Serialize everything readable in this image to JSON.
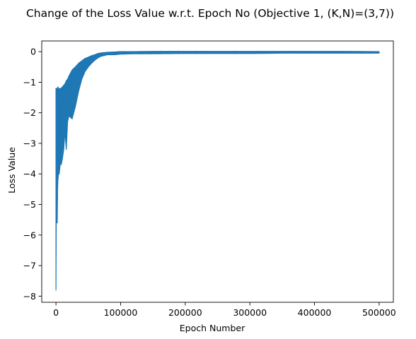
{
  "chart_data": {
    "type": "line",
    "title": "Change of the Loss Value w.r.t. Epoch No (Objective 1, (K,N)=(3,7))",
    "xlabel": "Epoch Number",
    "ylabel": "Loss Value",
    "xlim": [
      -22000,
      522000
    ],
    "ylim": [
      -8.2,
      0.35
    ],
    "x_ticks": [
      0,
      100000,
      200000,
      300000,
      400000,
      500000
    ],
    "y_ticks": [
      0,
      -1,
      -2,
      -3,
      -4,
      -5,
      -6,
      -7,
      -8
    ],
    "grid": false,
    "legend": "none",
    "series_color": "#1f77b4",
    "series": [
      {
        "x": [
          0,
          500,
          1000,
          1500,
          2000,
          2500,
          3000,
          4000,
          5000,
          6000,
          7000,
          8000,
          10000,
          12000,
          14000,
          16000,
          18000,
          20000,
          25000,
          30000,
          35000,
          40000,
          45000,
          50000,
          55000,
          60000,
          65000,
          70000,
          80000,
          90000,
          100000,
          120000,
          150000,
          200000,
          250000,
          300000,
          350000,
          400000,
          450000,
          500000
        ],
        "upper": [
          -1.2,
          -1.2,
          -1.2,
          -1.2,
          -1.2,
          -1.25,
          -1.15,
          -1.2,
          -1.25,
          -1.2,
          -1.2,
          -1.2,
          -1.15,
          -1.1,
          -1.05,
          -0.95,
          -0.9,
          -0.8,
          -0.6,
          -0.5,
          -0.38,
          -0.3,
          -0.22,
          -0.18,
          -0.13,
          -0.1,
          -0.06,
          -0.04,
          -0.02,
          -0.01,
          0.0,
          0.0,
          0.01,
          0.01,
          0.01,
          0.01,
          0.01,
          0.01,
          0.01,
          0.0
        ],
        "lower": [
          -7.8,
          -5.3,
          -4.3,
          -5.6,
          -5.6,
          -4.5,
          -4.2,
          -4.0,
          -4.0,
          -3.8,
          -3.6,
          -3.7,
          -3.5,
          -3.2,
          -2.6,
          -3.2,
          -2.3,
          -2.1,
          -2.2,
          -1.8,
          -1.3,
          -0.9,
          -0.65,
          -0.5,
          -0.38,
          -0.28,
          -0.2,
          -0.15,
          -0.1,
          -0.1,
          -0.08,
          -0.07,
          -0.07,
          -0.06,
          -0.06,
          -0.06,
          -0.05,
          -0.05,
          -0.05,
          -0.05
        ]
      }
    ]
  }
}
